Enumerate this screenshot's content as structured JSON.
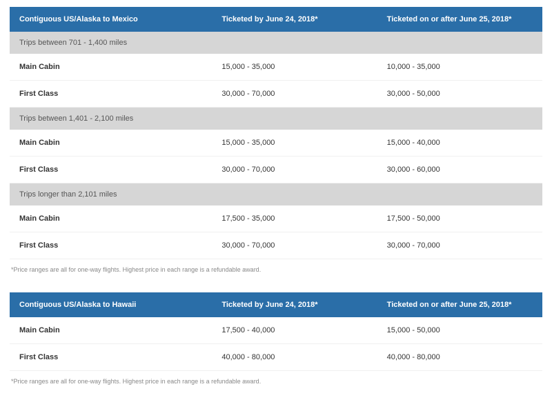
{
  "tables": [
    {
      "route_header": "Contiguous US/Alaska to Mexico",
      "col_before": "Ticketed by June 24, 2018*",
      "col_after": "Ticketed on or after June 25, 2018*",
      "groups": [
        {
          "label": "Trips between 701 - 1,400 miles",
          "rows": [
            {
              "cabin": "Main Cabin",
              "before": "15,000 - 35,000",
              "after": "10,000 - 35,000"
            },
            {
              "cabin": "First Class",
              "before": "30,000 - 70,000",
              "after": "30,000 - 50,000"
            }
          ]
        },
        {
          "label": "Trips between 1,401 - 2,100 miles",
          "rows": [
            {
              "cabin": "Main Cabin",
              "before": "15,000 - 35,000",
              "after": "15,000 - 40,000"
            },
            {
              "cabin": "First Class",
              "before": "30,000 - 70,000",
              "after": "30,000 - 60,000"
            }
          ]
        },
        {
          "label": "Trips longer than 2,101 miles",
          "rows": [
            {
              "cabin": "Main Cabin",
              "before": "17,500 - 35,000",
              "after": "17,500 - 50,000"
            },
            {
              "cabin": "First Class",
              "before": "30,000 - 70,000",
              "after": "30,000 - 70,000"
            }
          ]
        }
      ],
      "footnote": "*Price ranges are all for one-way flights. Highest price in each range is a refundable award."
    },
    {
      "route_header": "Contiguous US/Alaska to Hawaii",
      "col_before": "Ticketed by June 24, 2018*",
      "col_after": "Ticketed on or after June 25, 2018*",
      "groups": [
        {
          "rows": [
            {
              "cabin": "Main Cabin",
              "before": "17,500 - 40,000",
              "after": "15,000 - 50,000"
            },
            {
              "cabin": "First Class",
              "before": "40,000 - 80,000",
              "after": "40,000 - 80,000"
            }
          ]
        }
      ],
      "footnote": "*Price ranges are all for one-way flights. Highest price in each range is a refundable award."
    }
  ],
  "colors": {
    "header_bg": "#2a6ea8",
    "header_text": "#ffffff",
    "group_bg": "#d6d6d6",
    "row_border": "#f0f0f0",
    "footnote_text": "#888888"
  }
}
